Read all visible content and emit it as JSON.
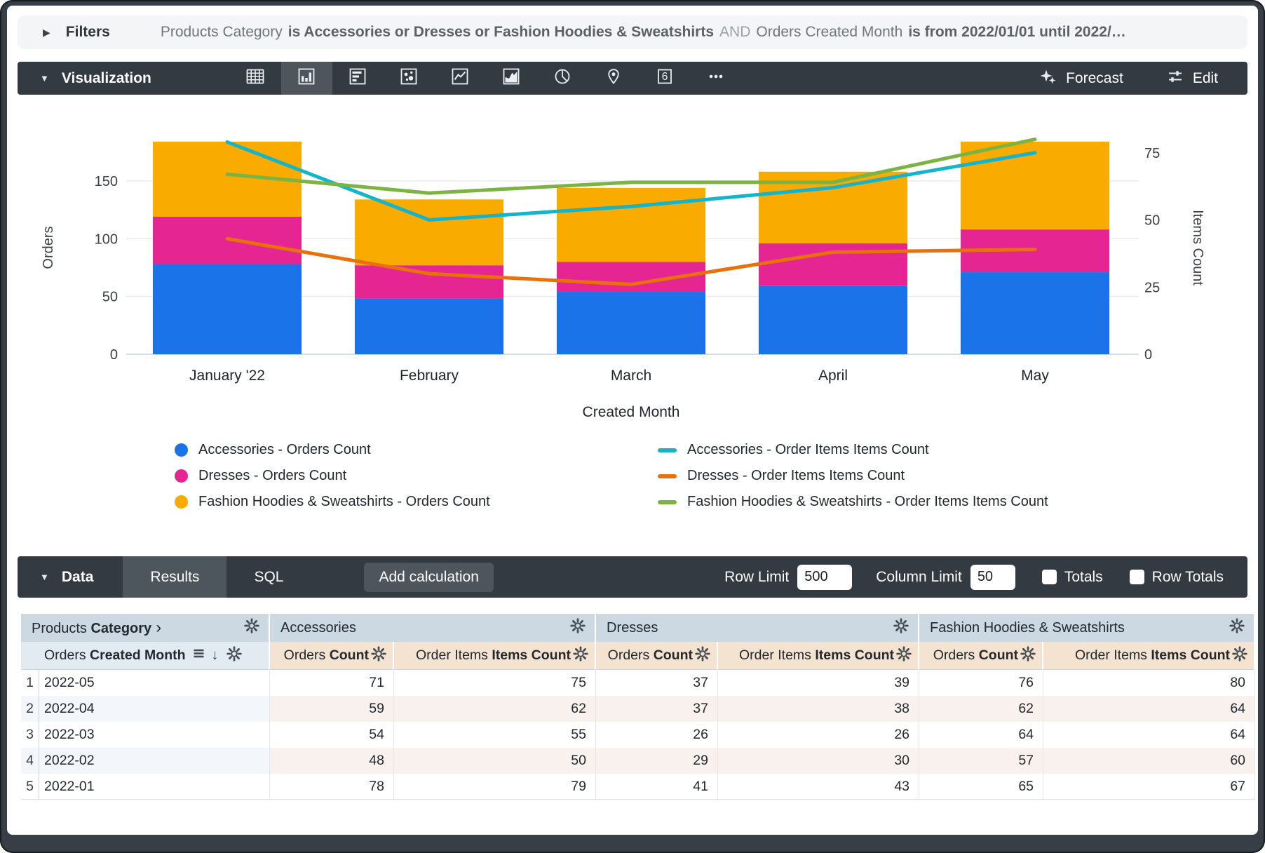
{
  "filters": {
    "expand_icon": "▶",
    "label": "Filters",
    "expression_parts": [
      {
        "style": "normal",
        "text": "Products Category"
      },
      {
        "style": "bold",
        "text": "is Accessories or Dresses or Fashion Hoodies & Sweatshirts"
      },
      {
        "style": "muted",
        "text": "AND"
      },
      {
        "style": "normal",
        "text": "Orders Created Month"
      },
      {
        "style": "bold",
        "text": "is from 2022/01/01 until 2022/…"
      }
    ]
  },
  "viz_toolbar": {
    "collapse_icon": "▼",
    "label": "Visualization",
    "single_value_glyph": "6",
    "chart_type_icons": [
      {
        "name": "table-chart",
        "selected": false
      },
      {
        "name": "column-chart",
        "selected": true
      },
      {
        "name": "bar-chart",
        "selected": false
      },
      {
        "name": "scatter-chart",
        "selected": false
      },
      {
        "name": "line-chart",
        "selected": false
      },
      {
        "name": "area-chart",
        "selected": false
      },
      {
        "name": "pie-chart",
        "selected": false
      },
      {
        "name": "map-chart",
        "selected": false
      },
      {
        "name": "single-value",
        "selected": false
      },
      {
        "name": "more-options",
        "selected": false
      }
    ],
    "forecast_label": "Forecast",
    "edit_label": "Edit"
  },
  "chart_data": {
    "type": "combo",
    "subtype": "stacked-column-with-lines",
    "categories": [
      "January '22",
      "February",
      "March",
      "April",
      "May"
    ],
    "x_axis_label": "Created Month",
    "left_axis": {
      "label": "Orders",
      "ticks": [
        0,
        50,
        100,
        150
      ]
    },
    "right_axis": {
      "label": "Items Count",
      "ticks": [
        0,
        25,
        50,
        75
      ]
    },
    "grid": true,
    "legend_position": "bottom",
    "bar_series": [
      {
        "name": "Accessories - Orders Count",
        "color": "#1A73E8",
        "values": [
          78,
          48,
          54,
          59,
          71
        ]
      },
      {
        "name": "Dresses - Orders Count",
        "color": "#E52592",
        "values": [
          41,
          29,
          26,
          37,
          37
        ]
      },
      {
        "name": "Fashion Hoodies & Sweatshirts - Orders Count",
        "color": "#F9AB00",
        "values": [
          65,
          57,
          64,
          62,
          76
        ]
      }
    ],
    "line_series": [
      {
        "name": "Accessories - Order Items Items Count",
        "color": "#12B5CB",
        "values": [
          79,
          50,
          55,
          62,
          75
        ]
      },
      {
        "name": "Dresses - Order Items Items Count",
        "color": "#E8710A",
        "values": [
          43,
          30,
          26,
          38,
          39
        ]
      },
      {
        "name": "Fashion Hoodies & Sweatshirts - Order Items Items Count",
        "color": "#7CB342",
        "values": [
          67,
          60,
          64,
          64,
          80
        ]
      }
    ]
  },
  "data_toolbar": {
    "collapse_icon": "▼",
    "label": "Data",
    "tabs": [
      {
        "label": "Results",
        "active": true
      },
      {
        "label": "SQL",
        "active": false
      }
    ],
    "add_calculation_label": "Add calculation",
    "row_limit": {
      "label": "Row Limit",
      "value": "500"
    },
    "column_limit": {
      "label": "Column Limit",
      "value": "50"
    },
    "totals": {
      "label": "Totals",
      "checked": false
    },
    "row_totals": {
      "label": "Row Totals",
      "checked": false
    }
  },
  "table": {
    "pivot_header": {
      "normal": "Products",
      "bold": "Category",
      "chevron": "›"
    },
    "dimension_header": {
      "normal": "Orders",
      "bold": "Created Month",
      "sort_arrow": "↓"
    },
    "groups": [
      "Accessories",
      "Dresses",
      "Fashion Hoodies & Sweatshirts"
    ],
    "measures": [
      {
        "normal": "Orders",
        "bold": "Count"
      },
      {
        "normal": "Order Items",
        "bold": "Items Count"
      }
    ],
    "rows": [
      {
        "index": "1",
        "dimension": "2022-05",
        "values": [
          "71",
          "75",
          "37",
          "39",
          "76",
          "80"
        ]
      },
      {
        "index": "2",
        "dimension": "2022-04",
        "values": [
          "59",
          "62",
          "37",
          "38",
          "62",
          "64"
        ]
      },
      {
        "index": "3",
        "dimension": "2022-03",
        "values": [
          "54",
          "55",
          "26",
          "26",
          "64",
          "64"
        ]
      },
      {
        "index": "4",
        "dimension": "2022-02",
        "values": [
          "48",
          "50",
          "29",
          "30",
          "57",
          "60"
        ]
      },
      {
        "index": "5",
        "dimension": "2022-01",
        "values": [
          "78",
          "79",
          "41",
          "43",
          "65",
          "67"
        ]
      }
    ]
  }
}
